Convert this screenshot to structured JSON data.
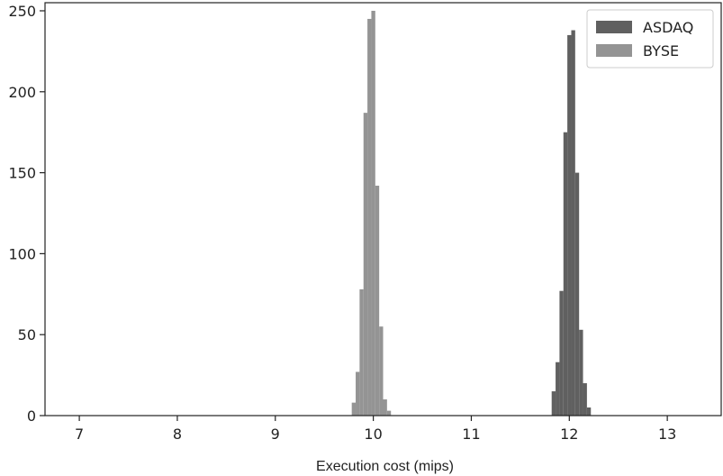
{
  "chart_data": {
    "type": "histogram",
    "xlabel": "Execution cost (mips)",
    "ylabel": "",
    "xlim": [
      6.65,
      13.55
    ],
    "ylim": [
      0,
      255
    ],
    "xticks": [
      7,
      8,
      9,
      10,
      11,
      12,
      13
    ],
    "yticks": [
      0,
      50,
      100,
      150,
      200,
      250
    ],
    "grid": false,
    "legend_position": "top-right",
    "bin_width": 0.04,
    "series": [
      {
        "name": "ASDAQ",
        "color": "#606060",
        "bins": [
          {
            "x0": 11.82,
            "value": 15
          },
          {
            "x0": 11.86,
            "value": 33
          },
          {
            "x0": 11.9,
            "value": 77
          },
          {
            "x0": 11.94,
            "value": 175
          },
          {
            "x0": 11.98,
            "value": 235
          },
          {
            "x0": 12.02,
            "value": 238
          },
          {
            "x0": 12.06,
            "value": 150
          },
          {
            "x0": 12.1,
            "value": 53
          },
          {
            "x0": 12.14,
            "value": 20
          },
          {
            "x0": 12.18,
            "value": 5
          }
        ]
      },
      {
        "name": "BYSE",
        "color": "#949494",
        "bins": [
          {
            "x0": 9.78,
            "value": 8
          },
          {
            "x0": 9.82,
            "value": 27
          },
          {
            "x0": 9.86,
            "value": 78
          },
          {
            "x0": 9.9,
            "value": 187
          },
          {
            "x0": 9.94,
            "value": 245
          },
          {
            "x0": 9.98,
            "value": 250
          },
          {
            "x0": 10.02,
            "value": 142
          },
          {
            "x0": 10.06,
            "value": 55
          },
          {
            "x0": 10.1,
            "value": 10
          },
          {
            "x0": 10.14,
            "value": 3
          }
        ]
      }
    ]
  }
}
